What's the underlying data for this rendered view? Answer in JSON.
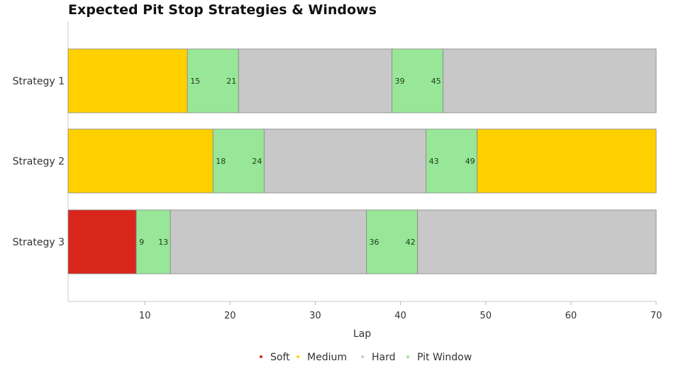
{
  "chart_data": {
    "type": "bar",
    "orientation": "horizontal",
    "stacked": true,
    "title": "Expected Pit Stop Strategies & Windows",
    "xlabel": "Lap",
    "ylabel": "",
    "xlim": [
      1,
      70
    ],
    "xticks": [
      10,
      20,
      30,
      40,
      50,
      60,
      70
    ],
    "grid": false,
    "legend_position": "bottom",
    "colors": {
      "Soft": "#d9261c",
      "Medium": "#ffd000",
      "Hard": "#c8c8c8",
      "Pit Window": "#98e698"
    },
    "legend": [
      "Soft",
      "Medium",
      "Hard",
      "Pit Window"
    ],
    "categories": [
      "Strategy 1",
      "Strategy 2",
      "Strategy 3"
    ],
    "strategies": [
      {
        "name": "Strategy 1",
        "segments": [
          {
            "compound": "Medium",
            "start": 1,
            "end": 15
          },
          {
            "compound": "Pit Window",
            "start": 15,
            "end": 21,
            "labels": [
              "15",
              "21"
            ]
          },
          {
            "compound": "Hard",
            "start": 21,
            "end": 39
          },
          {
            "compound": "Pit Window",
            "start": 39,
            "end": 45,
            "labels": [
              "39",
              "45"
            ]
          },
          {
            "compound": "Hard",
            "start": 45,
            "end": 70
          }
        ]
      },
      {
        "name": "Strategy 2",
        "segments": [
          {
            "compound": "Medium",
            "start": 1,
            "end": 18
          },
          {
            "compound": "Pit Window",
            "start": 18,
            "end": 24,
            "labels": [
              "18",
              "24"
            ]
          },
          {
            "compound": "Hard",
            "start": 24,
            "end": 43
          },
          {
            "compound": "Pit Window",
            "start": 43,
            "end": 49,
            "labels": [
              "43",
              "49"
            ]
          },
          {
            "compound": "Medium",
            "start": 49,
            "end": 70
          }
        ]
      },
      {
        "name": "Strategy 3",
        "segments": [
          {
            "compound": "Soft",
            "start": 1,
            "end": 9
          },
          {
            "compound": "Pit Window",
            "start": 9,
            "end": 13,
            "labels": [
              "9",
              "13"
            ]
          },
          {
            "compound": "Hard",
            "start": 13,
            "end": 36
          },
          {
            "compound": "Pit Window",
            "start": 36,
            "end": 42,
            "labels": [
              "36",
              "42"
            ]
          },
          {
            "compound": "Hard",
            "start": 42,
            "end": 70
          }
        ]
      }
    ]
  }
}
